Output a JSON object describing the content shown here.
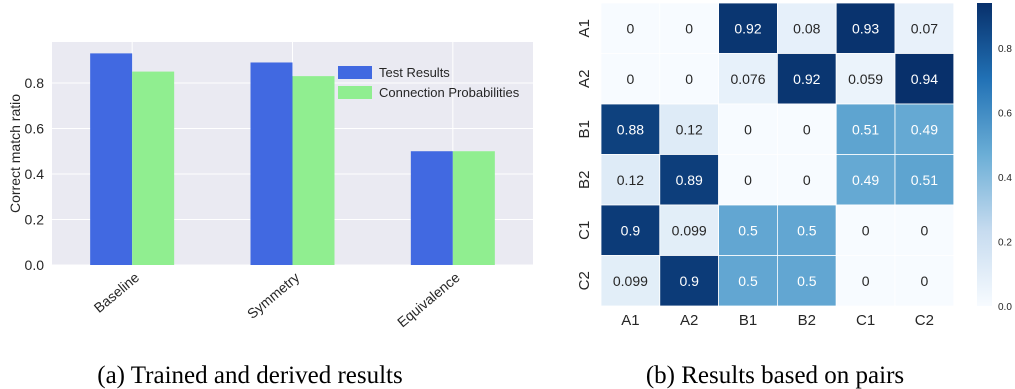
{
  "chart_data": [
    {
      "type": "bar",
      "categories": [
        "Baseline",
        "Symmetry",
        "Equivalence"
      ],
      "series": [
        {
          "name": "Test Results",
          "values": [
            0.93,
            0.89,
            0.5
          ]
        },
        {
          "name": "Connection Probabilities",
          "values": [
            0.85,
            0.83,
            0.5
          ]
        }
      ],
      "ylabel": "Correct match ratio",
      "ylim": [
        0,
        0.98
      ],
      "yticks": [
        0.0,
        0.2,
        0.4,
        0.6,
        0.8
      ],
      "grid": true,
      "legend": "top-right",
      "colors": [
        "#4169e1",
        "#90ee90"
      ],
      "caption": "(a) Trained and derived results"
    },
    {
      "type": "heatmap",
      "rows": [
        "A1",
        "A2",
        "B1",
        "B2",
        "C1",
        "C2"
      ],
      "cols": [
        "A1",
        "A2",
        "B1",
        "B2",
        "C1",
        "C2"
      ],
      "cell_labels": [
        [
          "0",
          "0",
          "0.92",
          "0.08",
          "0.93",
          "0.07"
        ],
        [
          "0",
          "0",
          "0.076",
          "0.92",
          "0.059",
          "0.94"
        ],
        [
          "0.88",
          "0.12",
          "0",
          "0",
          "0.51",
          "0.49"
        ],
        [
          "0.12",
          "0.89",
          "0",
          "0",
          "0.49",
          "0.51"
        ],
        [
          "0.9",
          "0.099",
          "0.5",
          "0.5",
          "0",
          "0"
        ],
        [
          "0.099",
          "0.9",
          "0.5",
          "0.5",
          "0",
          "0"
        ]
      ],
      "colorbar_ticks": [
        "0.0",
        "0.2",
        "0.4",
        "0.6",
        "0.8"
      ],
      "colormap": "Blues",
      "caption": "(b) Results based on pairs"
    }
  ]
}
